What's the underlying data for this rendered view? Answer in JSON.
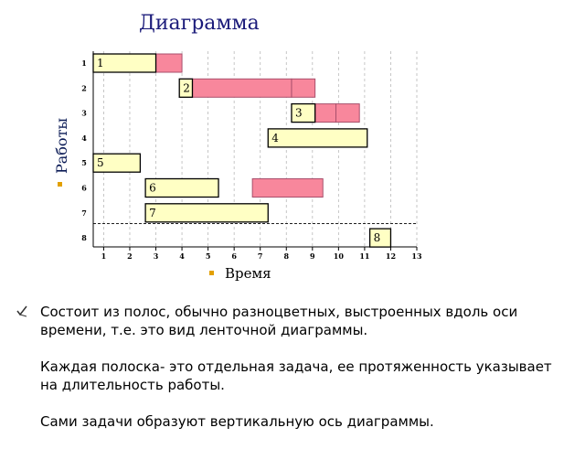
{
  "slide": {
    "bullet_color": "#e2a000",
    "notes": [
      "Состоит из полос, обычно разноцветных, выстроенных вдоль оси времени, т.е. это вид ленточной диаграммы.",
      "Каждая полоска- это отдельная задача, ее протяженность указывает на длительность работы.",
      "Сами задачи образуют вертикальную ось диаграммы."
    ]
  },
  "chart_data": {
    "type": "gantt",
    "title": "Диаграмма",
    "xlabel": "Время",
    "ylabel": "Работы",
    "x_ticks": [
      "1",
      "2",
      "3",
      "4",
      "5",
      "6",
      "7",
      "8",
      "9",
      "10",
      "11",
      "12",
      "13"
    ],
    "y_ticks": [
      "1",
      "2",
      "3",
      "4",
      "5",
      "6",
      "7",
      "8"
    ],
    "xlim": [
      0.6,
      13.0
    ],
    "grid": true,
    "colors": {
      "task": "#ffffc4",
      "slack": "#f8879c",
      "slack_edge": "#a84f6c"
    },
    "tasks": [
      {
        "label": "1",
        "row": 1,
        "start": 0.6,
        "end": 3.0,
        "slack": [
          [
            1.5,
            3.0
          ],
          [
            3.0,
            4.0
          ]
        ]
      },
      {
        "label": "2",
        "row": 2,
        "start": 3.9,
        "end": 4.4,
        "slack": [
          [
            4.4,
            8.2
          ],
          [
            8.2,
            9.1
          ]
        ]
      },
      {
        "label": "3",
        "row": 3,
        "start": 8.2,
        "end": 9.1,
        "slack": [
          [
            9.1,
            9.9
          ],
          [
            9.9,
            10.8
          ]
        ]
      },
      {
        "label": "4",
        "row": 4,
        "start": 7.3,
        "end": 11.1,
        "slack": []
      },
      {
        "label": "5",
        "row": 5,
        "start": 0.6,
        "end": 2.4,
        "slack": []
      },
      {
        "label": "6",
        "row": 6,
        "start": 2.6,
        "end": 5.4,
        "slack": [
          [
            6.7,
            9.4
          ]
        ]
      },
      {
        "label": "7",
        "row": 7,
        "start": 2.6,
        "end": 7.3,
        "slack": []
      },
      {
        "label": "8",
        "row": 8,
        "start": 11.2,
        "end": 12.0,
        "slack": []
      }
    ],
    "dashed_line_between_rows": [
      7,
      8
    ]
  }
}
